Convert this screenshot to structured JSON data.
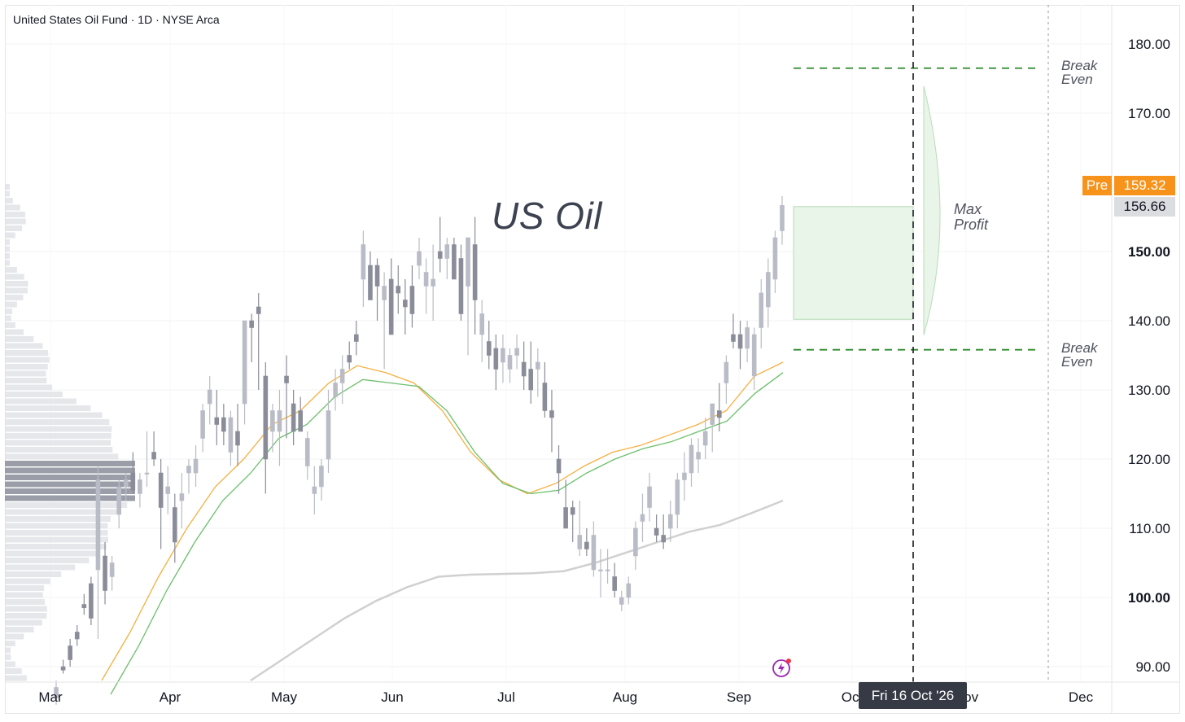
{
  "header": {
    "symbol_line": "United States Oil Fund · 1D · NYSE Arca"
  },
  "annotations": {
    "title_text": "US Oil",
    "break_even_upper": [
      "Break",
      "Even"
    ],
    "break_even_lower": [
      "Break",
      "Even"
    ],
    "max_profit": [
      "Max",
      "Profit"
    ]
  },
  "price_badges": {
    "pre_label": "Pre",
    "pre_value": "159.32",
    "last_value": "156.66"
  },
  "crosshair": {
    "date_label": "Fri 16 Oct '26"
  },
  "colors": {
    "pre_badge": "#f7931a",
    "last_badge": "#dcdde1",
    "candle": "#b9bcc6",
    "candle_dark": "#8a8d99",
    "ema_fast": "#f5b042",
    "ema_mid": "#6bbf6b",
    "sma_slow": "#d0d0d0",
    "break_even_line": "#2e8b2e",
    "profit_zone": "#e8f5e8",
    "accent_icon": "#9c27b0"
  },
  "chart_data": {
    "type": "candlestick",
    "title": "US Oil",
    "x_axis": {
      "labels": [
        "Mar",
        "Apr",
        "May",
        "Jun",
        "Jul",
        "Aug",
        "Sep",
        "Oct",
        "Nov",
        "Dec"
      ]
    },
    "y_axis": {
      "labels": [
        "180.00",
        "170.00",
        "150.00",
        "140.00",
        "130.00",
        "120.00",
        "110.00",
        "100.00",
        "90.00"
      ],
      "bold_labels": [
        "150.00",
        "100.00"
      ],
      "range": [
        88,
        183
      ]
    },
    "break_even_levels": [
      176.5,
      135.8
    ],
    "max_profit_box": {
      "top": 156.5,
      "bottom": 140.2
    },
    "last_price": 156.66,
    "pre_market_price": 159.32,
    "series": [
      {
        "type": "candles",
        "values_ohlc": [
          [
            85.5,
            88,
            84.5,
            87
          ],
          [
            90,
            91,
            89,
            89.5
          ],
          [
            93,
            94,
            90,
            91
          ],
          [
            95,
            96,
            93,
            94
          ],
          [
            99,
            100.5,
            97.5,
            98.5
          ],
          [
            102,
            103,
            96,
            97
          ],
          [
            104,
            119,
            94,
            117
          ],
          [
            106,
            108,
            99,
            101
          ],
          [
            103,
            106,
            101,
            105
          ],
          [
            112,
            117,
            110,
            116
          ],
          [
            116,
            118,
            114,
            117
          ],
          [
            118,
            121,
            115,
            115.5
          ],
          [
            115,
            118,
            113,
            117
          ],
          [
            118,
            124,
            116,
            118
          ],
          [
            121,
            124,
            119,
            120
          ],
          [
            118,
            120,
            107,
            113
          ],
          [
            115,
            119,
            112,
            116
          ],
          [
            113,
            115,
            105,
            108
          ],
          [
            114,
            118,
            110,
            115
          ],
          [
            118,
            120,
            115,
            119
          ],
          [
            118,
            122,
            116,
            120
          ],
          [
            123,
            128,
            121,
            127
          ],
          [
            128,
            132,
            125,
            130
          ],
          [
            126,
            130,
            122,
            125
          ],
          [
            126,
            128,
            122,
            124
          ],
          [
            121,
            127,
            119,
            126
          ],
          [
            124,
            128,
            119,
            122
          ],
          [
            128,
            137,
            125,
            140
          ],
          [
            140,
            141,
            134,
            139
          ],
          [
            142,
            144,
            130,
            141
          ],
          [
            132,
            134,
            115,
            120
          ],
          [
            124,
            128,
            121,
            127
          ],
          [
            124,
            130,
            119,
            127
          ],
          [
            132,
            135,
            123,
            131
          ],
          [
            128,
            130,
            122,
            124
          ],
          [
            127,
            129,
            124,
            124
          ],
          [
            119,
            124,
            117,
            123
          ],
          [
            115,
            119,
            112,
            116
          ],
          [
            116,
            120,
            114,
            119
          ],
          [
            120,
            130,
            118,
            127
          ],
          [
            129,
            133,
            127,
            131
          ],
          [
            131,
            135,
            128,
            133
          ],
          [
            135,
            137,
            133,
            134
          ],
          [
            138,
            140,
            135,
            137
          ],
          [
            146,
            153,
            142,
            151
          ],
          [
            148,
            150,
            143,
            143
          ],
          [
            148,
            149,
            140,
            145
          ],
          [
            143,
            147,
            133,
            145
          ],
          [
            146,
            149,
            138,
            138
          ],
          [
            145,
            148,
            141,
            144
          ],
          [
            143,
            146,
            138,
            142
          ],
          [
            145,
            148,
            139,
            141
          ],
          [
            148,
            152,
            146,
            150
          ],
          [
            145,
            149,
            141,
            147
          ],
          [
            145,
            151,
            140,
            146
          ],
          [
            150,
            155,
            147,
            149
          ],
          [
            149,
            152,
            146,
            151
          ],
          [
            151,
            152,
            146,
            146
          ],
          [
            149,
            151,
            140,
            141
          ],
          [
            145,
            152,
            135,
            152
          ],
          [
            151,
            155,
            138,
            143
          ],
          [
            138,
            143,
            134,
            141
          ],
          [
            137,
            140,
            133,
            135
          ],
          [
            136,
            138,
            130,
            133
          ],
          [
            134,
            138,
            131,
            136
          ],
          [
            133,
            136,
            131,
            135
          ],
          [
            135,
            138,
            133,
            136
          ],
          [
            134,
            137,
            130,
            132
          ],
          [
            133,
            137,
            128,
            130
          ],
          [
            133,
            136,
            129,
            134
          ],
          [
            131,
            134,
            126,
            127
          ],
          [
            127,
            130,
            121,
            126
          ],
          [
            120,
            122,
            115,
            118
          ],
          [
            113,
            117,
            110,
            110
          ],
          [
            113,
            114,
            108,
            112
          ],
          [
            107,
            114,
            106,
            109
          ],
          [
            108,
            110,
            106,
            107
          ],
          [
            104,
            111,
            103,
            109
          ],
          [
            104,
            107,
            100,
            104
          ],
          [
            104,
            107,
            102,
            104
          ],
          [
            103,
            105,
            100,
            101
          ],
          [
            99,
            101,
            98,
            100
          ],
          [
            100,
            103,
            99,
            102
          ],
          [
            106,
            111,
            104,
            110
          ],
          [
            111,
            115,
            108,
            112
          ],
          [
            113,
            118,
            111,
            116
          ],
          [
            110,
            112,
            108,
            109
          ],
          [
            109,
            112,
            107,
            108
          ],
          [
            110,
            114,
            108,
            112
          ],
          [
            112,
            118,
            110,
            117
          ],
          [
            117,
            121,
            114,
            118
          ],
          [
            118,
            123,
            116,
            122
          ],
          [
            120,
            123,
            118,
            121
          ],
          [
            122,
            126,
            120,
            124
          ],
          [
            125,
            128,
            121,
            128
          ],
          [
            127,
            131,
            124,
            126
          ],
          [
            131,
            135,
            128,
            134
          ],
          [
            138,
            141,
            136,
            137
          ],
          [
            138,
            140,
            133,
            136
          ],
          [
            136,
            140,
            134,
            139
          ],
          [
            132,
            139,
            130,
            138
          ],
          [
            139,
            146,
            136,
            144
          ],
          [
            142,
            149,
            139,
            147
          ],
          [
            146,
            153,
            144,
            152
          ],
          [
            153,
            158,
            151,
            156.66
          ]
        ]
      },
      {
        "name": "",
        "type": "line",
        "values": [
          88,
          95,
          103,
          110,
          116,
          120,
          125,
          127,
          131,
          133.5,
          132.5,
          131,
          127,
          121,
          117,
          115,
          116.5,
          119,
          121,
          122,
          123.5,
          125,
          127,
          132,
          134
        ]
      },
      {
        "name": "",
        "type": "line",
        "values": [
          86,
          93,
          101,
          108,
          114,
          118,
          123,
          125,
          129,
          131.5,
          131,
          130.5,
          127,
          121,
          116.5,
          115,
          115.5,
          118,
          120,
          121.5,
          122.5,
          124,
          125.5,
          129.5,
          132.5
        ]
      },
      {
        "name": "",
        "type": "line",
        "values": [
          88,
          91,
          94,
          97,
          99.5,
          101.5,
          103,
          103.3,
          103.4,
          103.5,
          103.8,
          105,
          106.5,
          108,
          109.5,
          110.5,
          112.2,
          114
        ]
      }
    ]
  }
}
